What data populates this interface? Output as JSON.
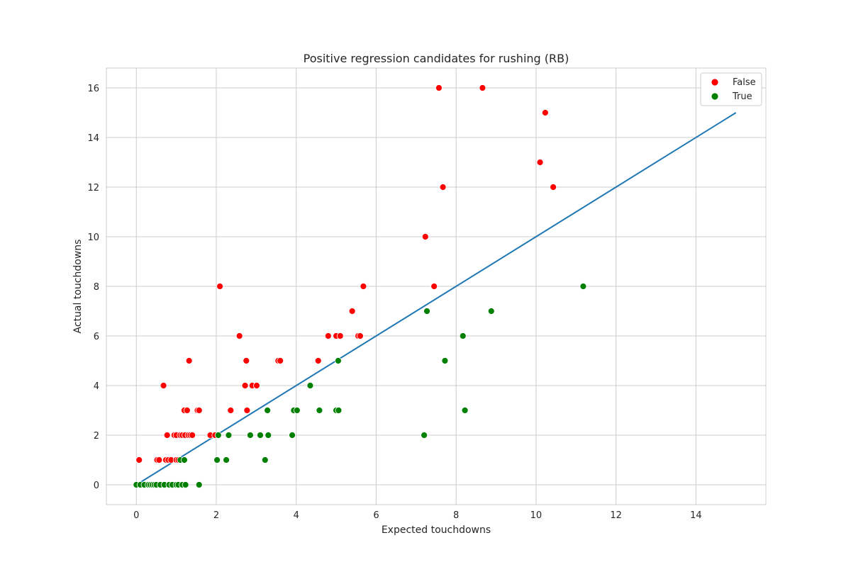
{
  "chart_data": {
    "type": "scatter",
    "title": "Positive regression candidates for rushing (RB)",
    "xlabel": "Expected touchdowns",
    "ylabel": "Actual touchdowns",
    "xlim": [
      -0.75,
      15.75
    ],
    "ylim": [
      -0.8,
      16.8
    ],
    "xticks": [
      0,
      2,
      4,
      6,
      8,
      10,
      12,
      14
    ],
    "yticks": [
      0,
      2,
      4,
      6,
      8,
      10,
      12,
      14,
      16
    ],
    "grid": true,
    "legend_position": "top-right",
    "series": [
      {
        "name": "False",
        "color": "#ff0000",
        "points": [
          [
            0.07,
            1
          ],
          [
            0.52,
            1
          ],
          [
            0.57,
            1
          ],
          [
            0.68,
            4
          ],
          [
            0.74,
            1
          ],
          [
            0.77,
            2
          ],
          [
            0.8,
            1
          ],
          [
            0.87,
            1
          ],
          [
            0.95,
            2
          ],
          [
            1.0,
            2
          ],
          [
            1.0,
            1
          ],
          [
            1.05,
            1
          ],
          [
            1.1,
            2
          ],
          [
            1.15,
            2
          ],
          [
            1.2,
            3
          ],
          [
            1.22,
            2
          ],
          [
            1.27,
            3
          ],
          [
            1.3,
            2
          ],
          [
            1.32,
            5
          ],
          [
            1.35,
            2
          ],
          [
            1.4,
            2
          ],
          [
            1.53,
            3
          ],
          [
            1.57,
            3
          ],
          [
            1.85,
            2
          ],
          [
            1.97,
            2
          ],
          [
            2.09,
            8
          ],
          [
            2.36,
            3
          ],
          [
            2.58,
            6
          ],
          [
            2.72,
            4
          ],
          [
            2.75,
            5
          ],
          [
            2.77,
            3
          ],
          [
            2.9,
            4
          ],
          [
            3.01,
            4
          ],
          [
            3.55,
            5
          ],
          [
            3.6,
            5
          ],
          [
            4.55,
            5
          ],
          [
            4.8,
            6
          ],
          [
            5.0,
            6
          ],
          [
            5.1,
            6
          ],
          [
            5.4,
            7
          ],
          [
            5.55,
            6
          ],
          [
            5.6,
            6
          ],
          [
            5.68,
            8
          ],
          [
            7.23,
            10
          ],
          [
            7.45,
            8
          ],
          [
            7.57,
            16
          ],
          [
            7.67,
            12
          ],
          [
            8.66,
            16
          ],
          [
            10.1,
            13
          ],
          [
            10.23,
            15
          ],
          [
            10.43,
            12
          ]
        ]
      },
      {
        "name": "True",
        "color": "#008000",
        "points": [
          [
            0.0,
            0
          ],
          [
            0.1,
            0
          ],
          [
            0.2,
            0
          ],
          [
            0.3,
            0
          ],
          [
            0.35,
            0
          ],
          [
            0.4,
            0
          ],
          [
            0.45,
            0
          ],
          [
            0.5,
            0
          ],
          [
            0.6,
            0
          ],
          [
            0.7,
            0
          ],
          [
            0.82,
            0
          ],
          [
            0.9,
            0
          ],
          [
            1.0,
            0
          ],
          [
            1.05,
            0
          ],
          [
            1.15,
            0
          ],
          [
            1.23,
            0
          ],
          [
            1.1,
            1
          ],
          [
            1.2,
            1
          ],
          [
            1.57,
            0
          ],
          [
            2.02,
            1
          ],
          [
            2.05,
            2
          ],
          [
            2.25,
            1
          ],
          [
            2.31,
            2
          ],
          [
            2.85,
            2
          ],
          [
            3.1,
            2
          ],
          [
            3.22,
            1
          ],
          [
            3.28,
            3
          ],
          [
            3.3,
            2
          ],
          [
            3.9,
            2
          ],
          [
            3.94,
            3
          ],
          [
            4.02,
            3
          ],
          [
            4.35,
            4
          ],
          [
            4.58,
            3
          ],
          [
            5.0,
            3
          ],
          [
            5.05,
            5
          ],
          [
            5.06,
            3
          ],
          [
            7.2,
            2
          ],
          [
            7.27,
            7
          ],
          [
            7.72,
            5
          ],
          [
            8.17,
            6
          ],
          [
            8.22,
            3
          ],
          [
            8.88,
            7
          ],
          [
            11.18,
            8
          ]
        ]
      }
    ],
    "reference_line": {
      "x": [
        0,
        15
      ],
      "y": [
        0,
        15
      ],
      "color": "#1f77b4"
    }
  }
}
